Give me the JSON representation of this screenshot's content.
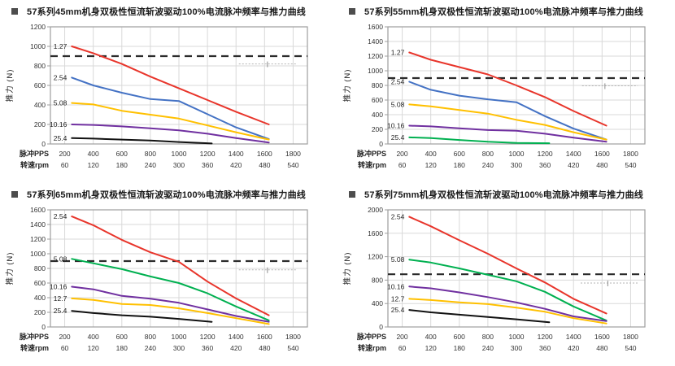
{
  "accent_colors": {
    "red": "#e8352b",
    "blue": "#4472c4",
    "yellow": "#ffc000",
    "purple": "#7030a0",
    "green": "#00b050",
    "black": "#111111",
    "grid": "#d9d9d9",
    "frame": "#9e9e9e",
    "dashed": "#2b2b2b",
    "tick_text": "#333333",
    "faint_mark": "#b3b3b3"
  },
  "chart_data": [
    {
      "type": "line",
      "title": "57系列45mm机身双极性恒流斩波驱动100%电流脉冲频率与推力曲线",
      "ylabel": "推力 (N)",
      "xlabel_row1": "脉冲PPS",
      "xlabel_row2": "转速rpm",
      "x_pps": [
        200,
        400,
        600,
        800,
        1000,
        1200,
        1400,
        1600,
        1800
      ],
      "x_rpm": [
        60,
        120,
        180,
        240,
        300,
        360,
        420,
        480,
        540
      ],
      "xlim": [
        100,
        1900
      ],
      "ylim": [
        0,
        1200
      ],
      "ytick_step": 200,
      "grid": true,
      "dashed_line_y": 900,
      "faint_mark": {
        "x1": 1420,
        "x2": 1830,
        "y": 820,
        "tick_x": 1620
      },
      "series": [
        {
          "name": "1.27",
          "color": "red",
          "x": [
            250,
            400,
            600,
            800,
            1000,
            1200,
            1400,
            1630
          ],
          "y": [
            1000,
            930,
            820,
            690,
            570,
            450,
            330,
            200
          ]
        },
        {
          "name": "2.54",
          "color": "blue",
          "x": [
            250,
            400,
            600,
            800,
            1000,
            1200,
            1400,
            1630
          ],
          "y": [
            680,
            600,
            525,
            460,
            440,
            305,
            170,
            50
          ]
        },
        {
          "name": "5.08",
          "color": "yellow",
          "x": [
            250,
            400,
            600,
            800,
            1000,
            1200,
            1400,
            1630
          ],
          "y": [
            420,
            405,
            340,
            300,
            260,
            190,
            120,
            45
          ]
        },
        {
          "name": "10.16",
          "color": "purple",
          "x": [
            250,
            400,
            600,
            800,
            1000,
            1200,
            1400,
            1630
          ],
          "y": [
            200,
            195,
            180,
            160,
            140,
            105,
            60,
            15
          ]
        },
        {
          "name": "25.4",
          "color": "black",
          "x": [
            250,
            400,
            600,
            800,
            1000,
            1230
          ],
          "y": [
            60,
            55,
            45,
            35,
            20,
            5
          ]
        }
      ]
    },
    {
      "type": "line",
      "title": "57系列55mm机身双极性恒流斩波驱动100%电流脉冲频率与推力曲线",
      "ylabel": "推力 (N)",
      "xlabel_row1": "脉冲PPS",
      "xlabel_row2": "转速rpm",
      "x_pps": [
        200,
        400,
        600,
        800,
        1000,
        1200,
        1400,
        1600,
        1800
      ],
      "x_rpm": [
        60,
        120,
        180,
        240,
        300,
        360,
        420,
        480,
        540
      ],
      "xlim": [
        100,
        1900
      ],
      "ylim": [
        0,
        1600
      ],
      "ytick_step": 200,
      "grid": true,
      "dashed_line_y": 900,
      "faint_mark": {
        "x1": 1460,
        "x2": 1850,
        "y": 795,
        "tick_x": 1620
      },
      "series": [
        {
          "name": "1.27",
          "color": "red",
          "x": [
            250,
            400,
            600,
            800,
            1000,
            1200,
            1400,
            1630
          ],
          "y": [
            1250,
            1150,
            1050,
            950,
            800,
            640,
            450,
            250
          ]
        },
        {
          "name": "2.54",
          "color": "blue",
          "x": [
            250,
            400,
            600,
            800,
            1000,
            1200,
            1400,
            1630
          ],
          "y": [
            850,
            740,
            660,
            610,
            570,
            380,
            210,
            60
          ]
        },
        {
          "name": "5.08",
          "color": "yellow",
          "x": [
            250,
            400,
            600,
            800,
            1000,
            1200,
            1400,
            1630
          ],
          "y": [
            540,
            515,
            465,
            415,
            330,
            260,
            160,
            60
          ]
        },
        {
          "name": "10.16",
          "color": "purple",
          "x": [
            250,
            400,
            600,
            800,
            1000,
            1200,
            1400,
            1630
          ],
          "y": [
            250,
            240,
            215,
            190,
            180,
            140,
            85,
            30
          ]
        },
        {
          "name": "25.4",
          "color": "green",
          "x": [
            250,
            400,
            600,
            800,
            1000,
            1230
          ],
          "y": [
            90,
            80,
            55,
            30,
            15,
            10
          ]
        }
      ]
    },
    {
      "type": "line",
      "title": "57系列65mm机身双极性恒流斩波驱动100%电流脉冲频率与推力曲线",
      "ylabel": "推力 (N)",
      "xlabel_row1": "脉冲PPS",
      "xlabel_row2": "转速rpm",
      "x_pps": [
        200,
        400,
        600,
        800,
        1000,
        1200,
        1400,
        1600,
        1800
      ],
      "x_rpm": [
        60,
        120,
        180,
        240,
        300,
        360,
        420,
        480,
        540
      ],
      "xlim": [
        100,
        1900
      ],
      "ylim": [
        0,
        1600
      ],
      "ytick_step": 200,
      "grid": true,
      "dashed_line_y": 900,
      "faint_mark": {
        "x1": 1420,
        "x2": 1830,
        "y": 780,
        "tick_x": 1620
      },
      "series": [
        {
          "name": "2.54",
          "color": "red",
          "x": [
            250,
            400,
            600,
            800,
            1000,
            1200,
            1400,
            1630
          ],
          "y": [
            1510,
            1390,
            1190,
            1020,
            890,
            620,
            390,
            160
          ]
        },
        {
          "name": "5.08",
          "color": "green",
          "x": [
            250,
            400,
            600,
            800,
            1000,
            1200,
            1400,
            1630
          ],
          "y": [
            930,
            870,
            790,
            690,
            600,
            460,
            280,
            90
          ]
        },
        {
          "name": "10.16",
          "color": "purple",
          "x": [
            250,
            400,
            600,
            800,
            1000,
            1200,
            1400,
            1630
          ],
          "y": [
            550,
            515,
            425,
            385,
            330,
            240,
            150,
            70
          ]
        },
        {
          "name": "12.7",
          "color": "yellow",
          "x": [
            250,
            400,
            600,
            800,
            1000,
            1200,
            1400,
            1630
          ],
          "y": [
            390,
            370,
            315,
            300,
            255,
            190,
            120,
            40
          ]
        },
        {
          "name": "25.4",
          "color": "black",
          "x": [
            250,
            400,
            600,
            800,
            1000,
            1230
          ],
          "y": [
            220,
            190,
            160,
            140,
            110,
            70
          ]
        }
      ]
    },
    {
      "type": "line",
      "title": "57系列75mm机身双极性恒流斩波驱动100%电流脉冲频率与推力曲线",
      "ylabel": "推力 (N)",
      "xlabel_row1": "脉冲PPS",
      "xlabel_row2": "转速rpm",
      "x_pps": [
        200,
        400,
        600,
        800,
        1000,
        1200,
        1400,
        1600,
        1800
      ],
      "x_rpm": [
        60,
        120,
        180,
        240,
        300,
        360,
        420,
        480,
        540
      ],
      "xlim": [
        100,
        1900
      ],
      "ylim": [
        0,
        2000
      ],
      "ytick_step": 400,
      "grid": true,
      "dashed_line_y": 900,
      "faint_mark": {
        "x1": 1450,
        "x2": 1860,
        "y": 750,
        "tick_x": 1640
      },
      "series": [
        {
          "name": "2.54",
          "color": "red",
          "x": [
            250,
            400,
            600,
            800,
            1000,
            1200,
            1400,
            1630
          ],
          "y": [
            1880,
            1720,
            1480,
            1250,
            1000,
            760,
            480,
            230
          ]
        },
        {
          "name": "5.08",
          "color": "green",
          "x": [
            250,
            400,
            600,
            800,
            1000,
            1200,
            1400,
            1630
          ],
          "y": [
            1150,
            1100,
            1000,
            890,
            780,
            600,
            350,
            110
          ]
        },
        {
          "name": "10.16",
          "color": "purple",
          "x": [
            250,
            400,
            600,
            800,
            1000,
            1200,
            1400,
            1630
          ],
          "y": [
            690,
            660,
            590,
            510,
            420,
            310,
            180,
            100
          ]
        },
        {
          "name": "12.7",
          "color": "yellow",
          "x": [
            250,
            400,
            600,
            800,
            1000,
            1200,
            1400,
            1630
          ],
          "y": [
            480,
            460,
            420,
            390,
            330,
            260,
            150,
            60
          ]
        },
        {
          "name": "25.4",
          "color": "black",
          "x": [
            250,
            400,
            600,
            800,
            1000,
            1230
          ],
          "y": [
            290,
            250,
            210,
            170,
            130,
            80
          ]
        }
      ]
    }
  ]
}
